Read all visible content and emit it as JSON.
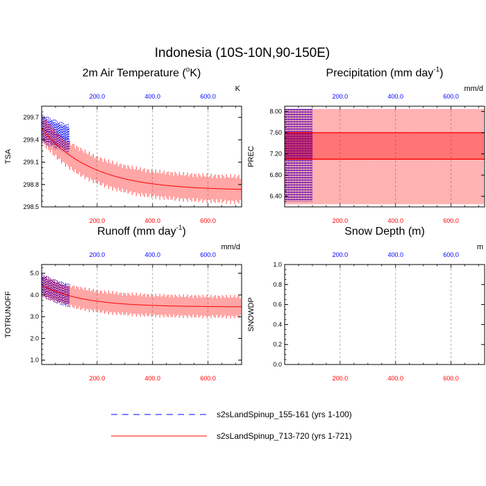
{
  "figure": {
    "title": "Indonesia (10S-10N,90-150E)"
  },
  "chart_data": [
    {
      "type": "line",
      "title": "2m Air Temperature (°K)",
      "title_pre": "2m Air Temperature (",
      "title_sup": "o",
      "title_post": "K)",
      "ylabel": "TSA",
      "unit": "K",
      "xlim": [
        0,
        721
      ],
      "ylim": [
        298.5,
        299.85
      ],
      "yticks": [
        "298.5",
        "298.8",
        "299.1",
        "299.4",
        "299.7"
      ],
      "x_top_ticks": [
        "200.0",
        "400.0",
        "600.0"
      ],
      "x_bottom_ticks": [
        "200.0",
        "400.0",
        "600.0"
      ],
      "series": [
        {
          "name": "s2sLandSpinup_155-161 (yrs 1-100)",
          "color": "#0000ff",
          "x_range": [
            1,
            100
          ],
          "start_mean": 299.55,
          "end_mean": 299.22,
          "decay_years": 180,
          "amplitude": 0.2
        },
        {
          "name": "s2sLandSpinup_713-720 (yrs 1-721)",
          "color": "#ff0000",
          "x_range": [
            1,
            721
          ],
          "start_mean": 299.55,
          "end_mean": 298.72,
          "decay_years": 180,
          "amplitude": 0.2
        }
      ]
    },
    {
      "type": "line",
      "title": "Precipitation (mm day-1)",
      "title_pre": "Precipitation (mm day",
      "title_sup": "-1",
      "title_post": ")",
      "ylabel": "PREC",
      "unit": "mm/d",
      "xlim": [
        0,
        721
      ],
      "ylim": [
        6.2,
        8.1
      ],
      "yticks": [
        "6.40",
        "6.80",
        "7.20",
        "7.60",
        "8.00"
      ],
      "x_top_ticks": [
        "200.0",
        "400.0",
        "600.0"
      ],
      "x_bottom_ticks": [
        "200.0",
        "400.0",
        "600.0"
      ],
      "series": [
        {
          "name": "s2sLandSpinup_155-161 (yrs 1-100)",
          "color": "#0000ff",
          "x_range": [
            1,
            100
          ],
          "levels": [
            8.05,
            7.6,
            7.1,
            6.3
          ]
        },
        {
          "name": "s2sLandSpinup_713-720 (yrs 1-721)",
          "color": "#ff0000",
          "x_range": [
            1,
            721
          ],
          "levels": [
            8.05,
            7.6,
            7.1,
            6.25
          ]
        }
      ]
    },
    {
      "type": "line",
      "title": "Runoff (mm day-1)",
      "title_pre": "Runoff (mm day",
      "title_sup": "-1",
      "title_post": ")",
      "ylabel": "TOTRUNOFF",
      "unit": "mm/d",
      "xlim": [
        0,
        721
      ],
      "ylim": [
        0.8,
        5.4
      ],
      "yticks": [
        "1.0",
        "2.0",
        "3.0",
        "4.0",
        "5.0"
      ],
      "x_top_ticks": [
        "200.0",
        "400.0",
        "600.0"
      ],
      "x_bottom_ticks": [
        "200.0",
        "400.0",
        "600.0"
      ],
      "series": [
        {
          "name": "s2sLandSpinup_155-161 (yrs 1-100)",
          "color": "#0000ff",
          "x_range": [
            1,
            100
          ],
          "start_mean": 4.45,
          "end_mean": 3.45,
          "decay_years": 150,
          "amplitude": 0.55
        },
        {
          "name": "s2sLandSpinup_713-720 (yrs 1-721)",
          "color": "#ff0000",
          "x_range": [
            1,
            721
          ],
          "start_mean": 4.45,
          "end_mean": 3.45,
          "decay_years": 150,
          "amplitude": 0.55
        }
      ]
    },
    {
      "type": "line",
      "title": "Snow Depth (m)",
      "title_pre": "Snow Depth (m)",
      "title_sup": "",
      "title_post": "",
      "ylabel": "SNOWDP",
      "unit": "m",
      "xlim": [
        0,
        721
      ],
      "ylim": [
        0.0,
        1.0
      ],
      "yticks": [
        "0.0",
        "0.2",
        "0.4",
        "0.6",
        "0.8",
        "1.0"
      ],
      "x_top_ticks": [
        "200.0",
        "400.0",
        "600.0"
      ],
      "x_bottom_ticks": [
        "200.0",
        "400.0",
        "600.0"
      ],
      "series": [
        {
          "name": "s2sLandSpinup_155-161 (yrs 1-100)",
          "color": "#0000ff",
          "x_range": [
            1,
            100
          ],
          "values": [
            0.0
          ]
        },
        {
          "name": "s2sLandSpinup_713-720 (yrs 1-721)",
          "color": "#ff0000",
          "x_range": [
            1,
            721
          ],
          "values": [
            0.0
          ]
        }
      ]
    }
  ],
  "legend": {
    "items": [
      {
        "label": "s2sLandSpinup_155-161 (yrs 1-100)",
        "color": "#0000ff",
        "style": "dashed"
      },
      {
        "label": "s2sLandSpinup_713-720 (yrs 1-721)",
        "color": "#ff0000",
        "style": "solid"
      }
    ]
  }
}
